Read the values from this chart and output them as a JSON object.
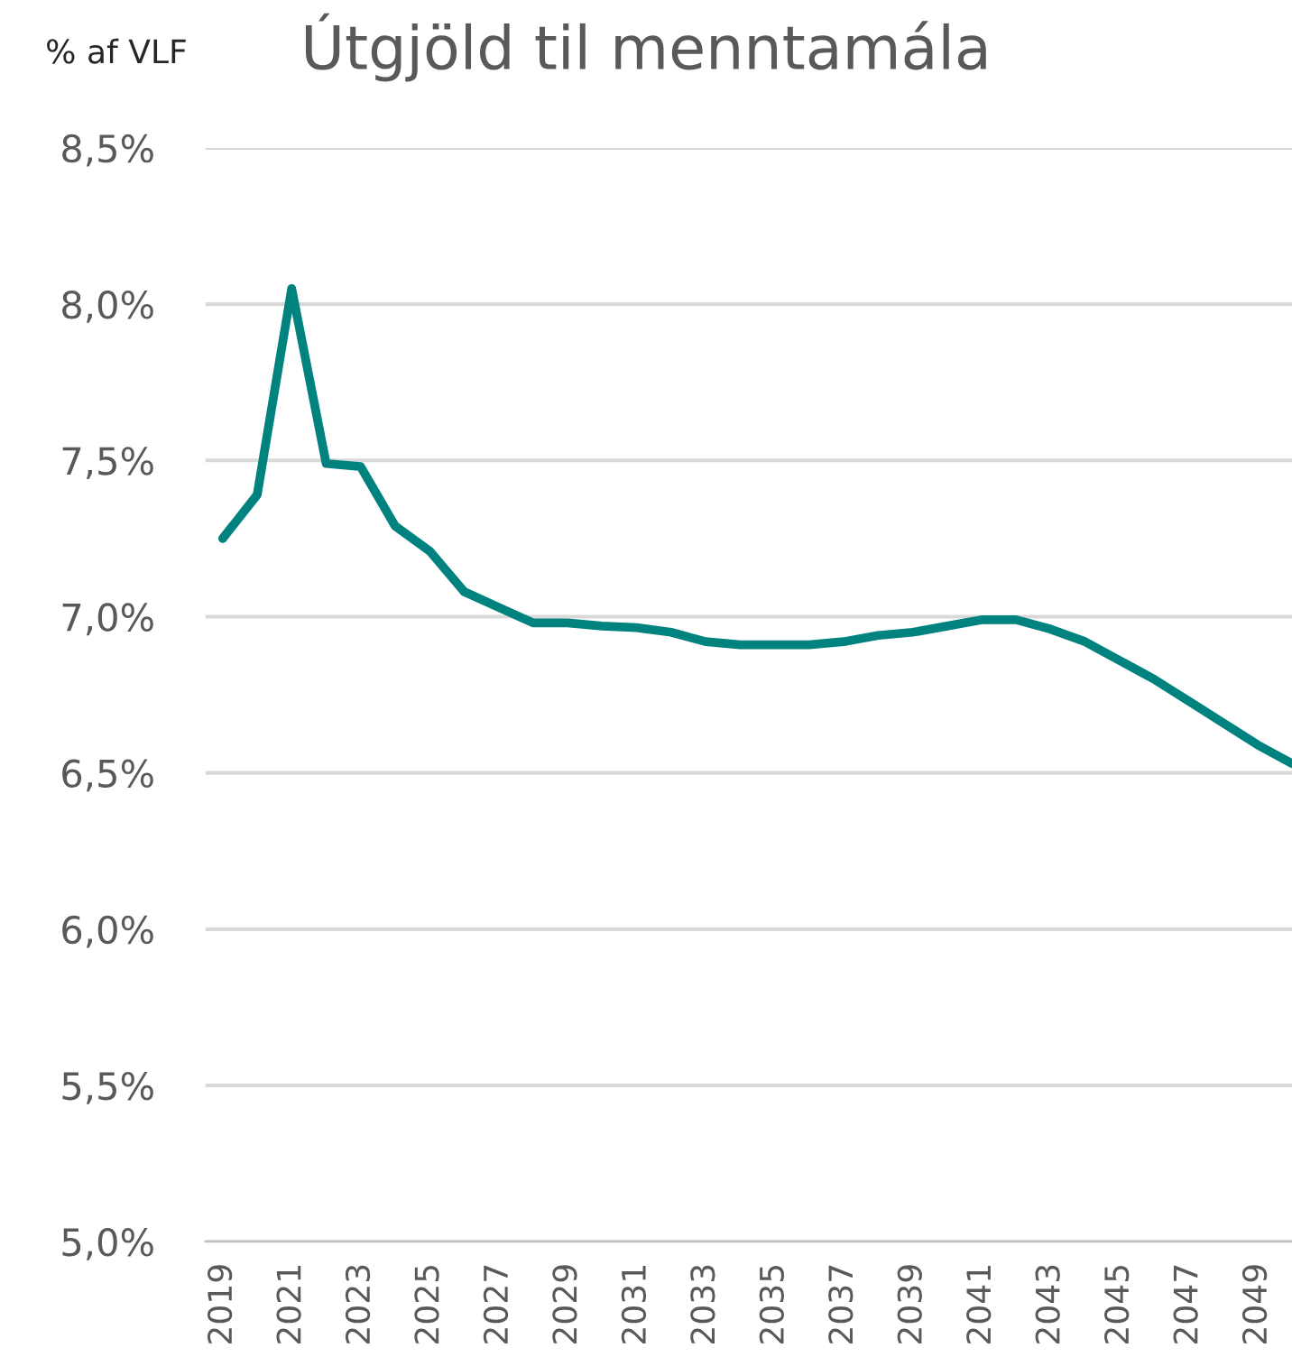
{
  "chart_data": {
    "type": "line",
    "title": "Útgjöld til menntamála",
    "ylabel": "% af VLF",
    "x": [
      2019,
      2020,
      2021,
      2022,
      2023,
      2024,
      2025,
      2026,
      2027,
      2028,
      2029,
      2030,
      2031,
      2032,
      2033,
      2034,
      2035,
      2036,
      2037,
      2038,
      2039,
      2040,
      2041,
      2042,
      2043,
      2044,
      2045,
      2046,
      2047,
      2048,
      2049,
      2050
    ],
    "series": [
      {
        "color": "#00827f",
        "values": [
          7.25,
          7.39,
          8.05,
          7.49,
          7.48,
          7.29,
          7.21,
          7.08,
          7.03,
          6.98,
          6.98,
          6.97,
          6.965,
          6.95,
          6.92,
          6.91,
          6.91,
          6.91,
          6.92,
          6.94,
          6.95,
          6.97,
          6.99,
          6.99,
          6.96,
          6.92,
          6.86,
          6.8,
          6.73,
          6.66,
          6.59,
          6.53
        ]
      }
    ],
    "xlim": [
      2018.5,
      2050
    ],
    "xticks": [
      2019,
      2021,
      2023,
      2025,
      2027,
      2029,
      2031,
      2033,
      2035,
      2037,
      2039,
      2041,
      2043,
      2045,
      2047,
      2049
    ],
    "ylim": [
      5.0,
      8.5
    ],
    "yticks": [
      {
        "value": 5.0,
        "label": "5,0%"
      },
      {
        "value": 5.5,
        "label": "5,5%"
      },
      {
        "value": 6.0,
        "label": "6,0%"
      },
      {
        "value": 6.5,
        "label": "6,5%"
      },
      {
        "value": 7.0,
        "label": "7,0%"
      },
      {
        "value": 7.5,
        "label": "7,5%"
      },
      {
        "value": 8.0,
        "label": "8,0%"
      },
      {
        "value": 8.5,
        "label": "8,5%"
      }
    ],
    "grid": "y",
    "legend": false,
    "marker": "none",
    "line_style": "solid"
  }
}
